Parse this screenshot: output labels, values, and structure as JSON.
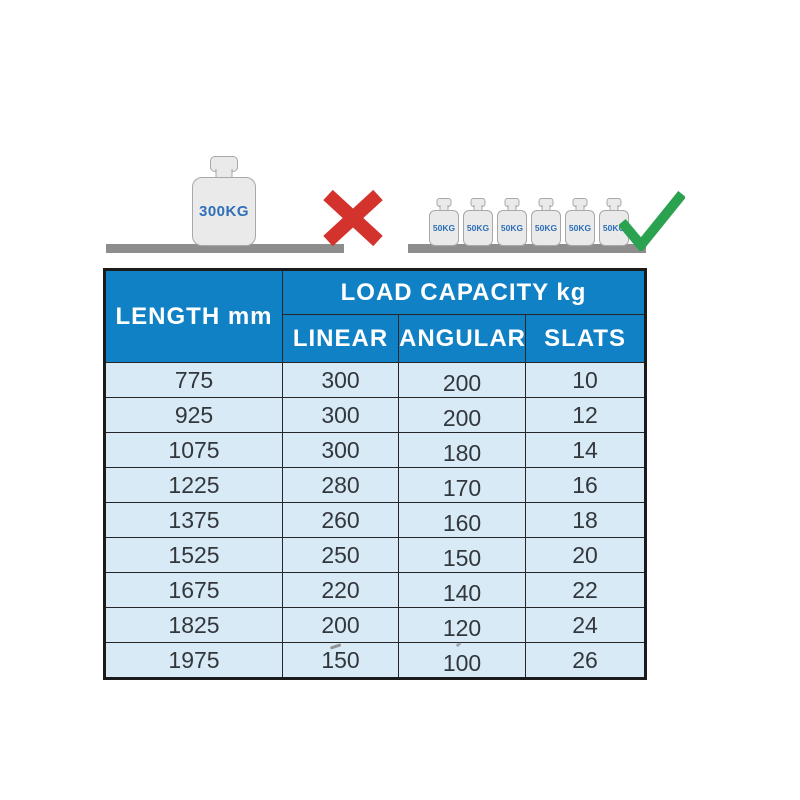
{
  "illustration": {
    "incorrect": {
      "weight_label": "300KG",
      "weight_count": 1,
      "symbol": "cross"
    },
    "correct": {
      "weight_label": "50KG",
      "weight_count": 6,
      "symbol": "check"
    }
  },
  "table": {
    "header": {
      "length_label": "LENGTH mm",
      "group_label": "LOAD CAPACITY kg",
      "sub_labels": [
        "LINEAR",
        "ANGULAR",
        "SLATS"
      ]
    }
  },
  "chart_data": {
    "type": "table",
    "title": "LOAD CAPACITY kg",
    "columns": [
      "LENGTH mm",
      "LINEAR",
      "ANGULAR",
      "SLATS"
    ],
    "rows": [
      [
        775,
        300,
        200,
        10
      ],
      [
        925,
        300,
        200,
        12
      ],
      [
        1075,
        300,
        180,
        14
      ],
      [
        1225,
        280,
        170,
        16
      ],
      [
        1375,
        260,
        160,
        18
      ],
      [
        1525,
        250,
        150,
        20
      ],
      [
        1675,
        220,
        140,
        22
      ],
      [
        1825,
        200,
        120,
        24
      ],
      [
        1975,
        150,
        100,
        26
      ]
    ]
  },
  "colors": {
    "header_blue": "#1181c5",
    "row_light_blue": "#d9eaf7",
    "border_dark": "#262626",
    "cross_red": "#d3332c",
    "check_green": "#2aa250",
    "weight_fill": "#eaeaea",
    "weight_outline": "#a8a8a8",
    "weight_label_blue": "#2e6fb7",
    "shelf_gray": "#8d8d8d",
    "body_text": "#32373c"
  }
}
